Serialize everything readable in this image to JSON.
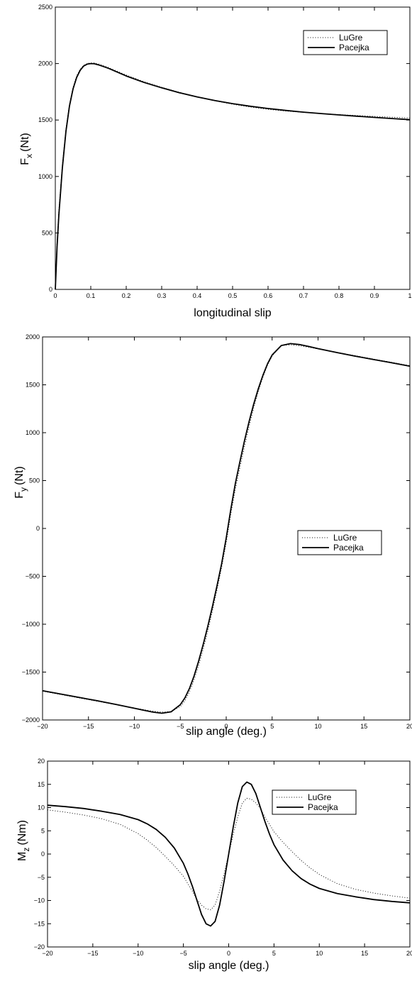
{
  "chart_data": [
    {
      "type": "line",
      "xlabel": "longitudinal slip",
      "ylabel_main": "F",
      "ylabel_sub": "x",
      "ylabel_unit": "(Nt)",
      "xlim": [
        0,
        1
      ],
      "ylim": [
        0,
        2500
      ],
      "xticks": [
        0,
        0.1,
        0.2,
        0.3,
        0.4,
        0.5,
        0.6,
        0.7,
        0.8,
        0.9,
        1
      ],
      "xtick_labels": [
        "0",
        "0.1",
        "0.2",
        "0.3",
        "0.4",
        "0.5",
        "0.6",
        "0.7",
        "0.8",
        "0.9",
        "1"
      ],
      "yticks": [
        0,
        500,
        1000,
        1500,
        2000,
        2500
      ],
      "ytick_labels": [
        "0",
        "500",
        "1000",
        "1500",
        "2000",
        "2500"
      ],
      "grid": false,
      "legend_position": "top-right",
      "series": [
        {
          "name": "LuGre",
          "style": "dotted",
          "x": [
            0,
            0.005,
            0.01,
            0.02,
            0.03,
            0.04,
            0.05,
            0.06,
            0.07,
            0.08,
            0.09,
            0.1,
            0.11,
            0.12,
            0.13,
            0.15,
            0.2,
            0.25,
            0.3,
            0.35,
            0.4,
            0.45,
            0.5,
            0.55,
            0.6,
            0.65,
            0.7,
            0.75,
            0.8,
            0.85,
            0.9,
            0.95,
            1
          ],
          "y": [
            0,
            420,
            700,
            1110,
            1420,
            1640,
            1790,
            1890,
            1950,
            1985,
            2000,
            2005,
            2005,
            1998,
            1988,
            1965,
            1898,
            1840,
            1790,
            1745,
            1705,
            1670,
            1640,
            1615,
            1595,
            1580,
            1568,
            1558,
            1548,
            1540,
            1532,
            1525,
            1518
          ]
        },
        {
          "name": "Pacejka",
          "style": "solid",
          "x": [
            0,
            0.005,
            0.01,
            0.02,
            0.03,
            0.04,
            0.05,
            0.06,
            0.07,
            0.08,
            0.09,
            0.1,
            0.11,
            0.12,
            0.13,
            0.15,
            0.2,
            0.25,
            0.3,
            0.35,
            0.4,
            0.45,
            0.5,
            0.55,
            0.6,
            0.65,
            0.7,
            0.75,
            0.8,
            0.85,
            0.9,
            0.95,
            1
          ],
          "y": [
            0,
            380,
            660,
            1080,
            1400,
            1625,
            1775,
            1875,
            1940,
            1978,
            1995,
            2000,
            1998,
            1990,
            1980,
            1958,
            1890,
            1833,
            1785,
            1742,
            1705,
            1673,
            1645,
            1622,
            1602,
            1585,
            1570,
            1557,
            1545,
            1534,
            1523,
            1513,
            1503
          ]
        }
      ]
    },
    {
      "type": "line",
      "xlabel": "slip angle (deg.)",
      "ylabel_main": "F",
      "ylabel_sub": "y",
      "ylabel_unit": "(Nt)",
      "xlim": [
        -20,
        20
      ],
      "ylim": [
        -2000,
        2000
      ],
      "xticks": [
        -20,
        -15,
        -10,
        -5,
        0,
        5,
        10,
        15,
        20
      ],
      "xtick_labels": [
        "−20",
        "−15",
        "−10",
        "−5",
        "0",
        "5",
        "10",
        "15",
        "20"
      ],
      "yticks": [
        -2000,
        -1500,
        -1000,
        -500,
        0,
        500,
        1000,
        1500,
        2000
      ],
      "ytick_labels": [
        "−2000",
        "−1500",
        "−1000",
        "−500",
        "0",
        "500",
        "1000",
        "1500",
        "2000"
      ],
      "grid": false,
      "legend_position": "lower-right",
      "series": [
        {
          "name": "LuGre",
          "style": "dotted",
          "x": [
            -20,
            -18,
            -16,
            -14,
            -12,
            -10,
            -9,
            -8,
            -7,
            -6,
            -5,
            -4.5,
            -4,
            -3.5,
            -3,
            -2.5,
            -2,
            -1.5,
            -1,
            -0.5,
            0,
            0.5,
            1,
            1.5,
            2,
            2.5,
            3,
            3.5,
            4,
            4.5,
            5,
            6,
            7,
            8,
            9,
            10,
            12,
            14,
            16,
            18,
            20
          ],
          "y": [
            -1700,
            -1735,
            -1770,
            -1805,
            -1840,
            -1875,
            -1892,
            -1908,
            -1918,
            -1912,
            -1860,
            -1800,
            -1705,
            -1580,
            -1430,
            -1260,
            -1070,
            -860,
            -640,
            -410,
            -150,
            150,
            410,
            640,
            860,
            1070,
            1260,
            1430,
            1580,
            1705,
            1800,
            1912,
            1918,
            1908,
            1892,
            1875,
            1840,
            1805,
            1770,
            1735,
            1700
          ]
        },
        {
          "name": "Pacejka",
          "style": "solid",
          "x": [
            -20,
            -18,
            -16,
            -14,
            -12,
            -10,
            -9,
            -8,
            -7,
            -6,
            -5,
            -4.5,
            -4,
            -3.5,
            -3,
            -2.5,
            -2,
            -1.5,
            -1,
            -0.5,
            0,
            0.5,
            1,
            1.5,
            2,
            2.5,
            3,
            3.5,
            4,
            4.5,
            5,
            6,
            7,
            8,
            9,
            10,
            12,
            14,
            16,
            18,
            20
          ],
          "y": [
            -1695,
            -1730,
            -1765,
            -1800,
            -1838,
            -1878,
            -1898,
            -1918,
            -1930,
            -1915,
            -1840,
            -1770,
            -1670,
            -1540,
            -1385,
            -1210,
            -1020,
            -815,
            -600,
            -370,
            -100,
            200,
            470,
            700,
            920,
            1120,
            1300,
            1460,
            1600,
            1720,
            1812,
            1910,
            1930,
            1920,
            1900,
            1878,
            1838,
            1800,
            1765,
            1730,
            1695
          ]
        }
      ]
    },
    {
      "type": "line",
      "xlabel": "slip angle (deg.)",
      "ylabel_main": "M",
      "ylabel_sub": "z",
      "ylabel_unit": "(Nm)",
      "xlim": [
        -20,
        20
      ],
      "ylim": [
        -20,
        20
      ],
      "xticks": [
        -20,
        -15,
        -10,
        -5,
        0,
        5,
        10,
        15,
        20
      ],
      "xtick_labels": [
        "−20",
        "−15",
        "−10",
        "−5",
        "0",
        "5",
        "10",
        "15",
        "20"
      ],
      "yticks": [
        -20,
        -15,
        -10,
        -5,
        0,
        5,
        10,
        15,
        20
      ],
      "ytick_labels": [
        "−20",
        "−15",
        "−10",
        "−5",
        "0",
        "5",
        "10",
        "15",
        "20"
      ],
      "grid": false,
      "legend_position": "top-right",
      "series": [
        {
          "name": "LuGre",
          "style": "dotted",
          "x": [
            -20,
            -18,
            -16,
            -14,
            -12,
            -10,
            -9,
            -8,
            -7,
            -6,
            -5,
            -4,
            -3.5,
            -3,
            -2.5,
            -2,
            -1.5,
            -1,
            -0.5,
            0,
            0.5,
            1,
            1.5,
            2,
            2.5,
            3,
            3.5,
            4,
            5,
            6,
            7,
            8,
            9,
            10,
            12,
            14,
            16,
            18,
            20
          ],
          "y": [
            9.5,
            9.0,
            8.4,
            7.6,
            6.4,
            4.4,
            3.0,
            1.4,
            -0.5,
            -2.5,
            -4.8,
            -8.0,
            -9.8,
            -11.0,
            -11.8,
            -12.0,
            -11.0,
            -8.0,
            -4.2,
            0,
            4.2,
            8.0,
            11.0,
            12.0,
            11.8,
            11.0,
            9.8,
            8.0,
            4.8,
            2.5,
            0.5,
            -1.4,
            -3.0,
            -4.4,
            -6.4,
            -7.6,
            -8.4,
            -9.0,
            -9.5
          ]
        },
        {
          "name": "Pacejka",
          "style": "solid",
          "x": [
            -20,
            -18,
            -16,
            -14,
            -12,
            -10,
            -9,
            -8,
            -7,
            -6,
            -5,
            -4.5,
            -4,
            -3.5,
            -3,
            -2.5,
            -2,
            -1.5,
            -1,
            -0.5,
            0,
            0.5,
            1,
            1.5,
            2,
            2.5,
            3,
            3.5,
            4,
            4.5,
            5,
            6,
            7,
            8,
            9,
            10,
            12,
            14,
            16,
            18,
            20
          ],
          "y": [
            10.5,
            10.2,
            9.8,
            9.2,
            8.5,
            7.4,
            6.5,
            5.3,
            3.6,
            1.3,
            -2.0,
            -4.3,
            -7.0,
            -10.0,
            -13.0,
            -15.0,
            -15.5,
            -14.5,
            -11.0,
            -5.8,
            0,
            5.8,
            11.0,
            14.5,
            15.5,
            15.0,
            13.0,
            10.0,
            7.0,
            4.3,
            2.0,
            -1.3,
            -3.6,
            -5.3,
            -6.5,
            -7.4,
            -8.5,
            -9.2,
            -9.8,
            -10.2,
            -10.5
          ]
        }
      ]
    }
  ]
}
